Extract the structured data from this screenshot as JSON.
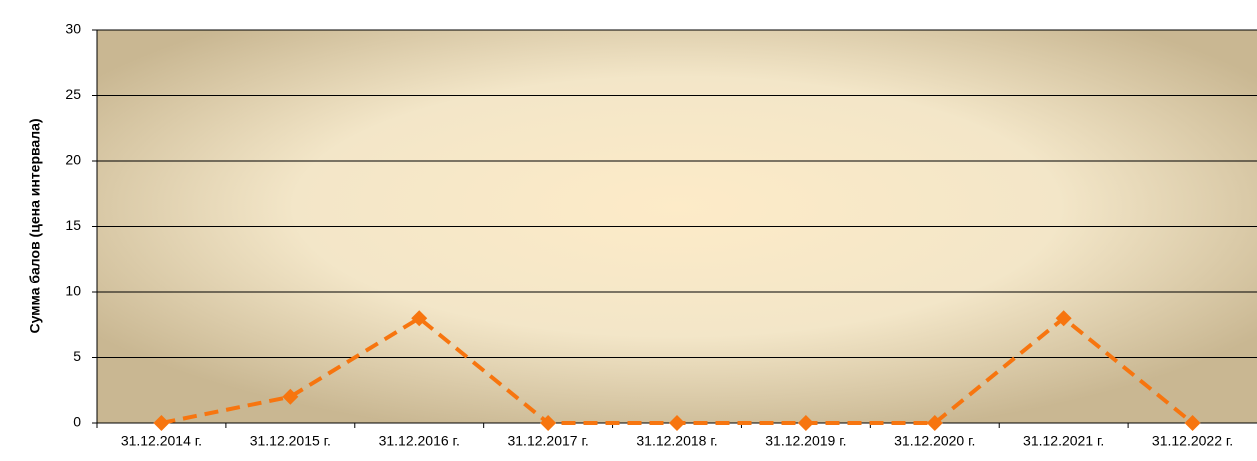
{
  "chart_data": {
    "type": "line",
    "y_label": "Сумма балов (цена интервала)",
    "categories": [
      "31.12.2014 г.",
      "31.12.2015 г.",
      "31.12.2016 г.",
      "31.12.2017 г.",
      "31.12.2018 г.",
      "31.12.2019 г.",
      "31.12.2020 г.",
      "31.12.2021 г.",
      "31.12.2022 г."
    ],
    "series": [
      {
        "name": "Сумма балов",
        "color": "#f7750f",
        "values": [
          0,
          2,
          8,
          0,
          0,
          0,
          0,
          8,
          0
        ]
      }
    ],
    "ylim": [
      0,
      30
    ],
    "yticks": [
      0,
      5,
      10,
      15,
      20,
      25,
      30
    ],
    "grid": true
  }
}
